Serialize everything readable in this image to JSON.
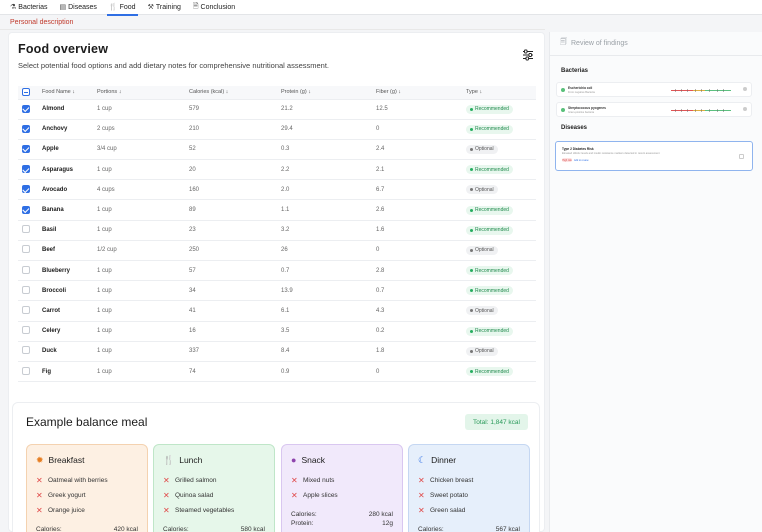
{
  "tabs": [
    {
      "icon": "bacteria-icon",
      "glyph": "⚗",
      "label": "Bacterias"
    },
    {
      "icon": "diseases-icon",
      "glyph": "▤",
      "label": "Diseases"
    },
    {
      "icon": "food-icon",
      "glyph": "🍴",
      "label": "Food",
      "active": true
    },
    {
      "icon": "training-icon",
      "glyph": "⚒",
      "label": "Training"
    },
    {
      "icon": "conclusion-icon",
      "glyph": "🗎",
      "label": "Conclusion"
    }
  ],
  "personal_description": "Personal description",
  "overview": {
    "title": "Food  overview",
    "subtitle": "Select potential food options and add dietary notes for comprehensive nutritional assessment."
  },
  "table": {
    "headers": [
      "Food Name ↓",
      "Portions ↓",
      "Calories (kcal) ↓",
      "Protein (g) ↓",
      "Fiber (g) ↓",
      "Type ↓"
    ],
    "rows": [
      {
        "name": "Almond",
        "portion": "1 cup",
        "calories": "579",
        "protein": "21.2",
        "fiber": "12.5",
        "type": "Recommended",
        "checked": true
      },
      {
        "name": "Anchovy",
        "portion": "2 cups",
        "calories": "210",
        "protein": "29.4",
        "fiber": "0",
        "type": "Recommended",
        "checked": true
      },
      {
        "name": "Apple",
        "portion": "3/4 cup",
        "calories": "52",
        "protein": "0.3",
        "fiber": "2.4",
        "type": "Optional",
        "checked": true
      },
      {
        "name": "Asparagus",
        "portion": "1 cup",
        "calories": "20",
        "protein": "2.2",
        "fiber": "2.1",
        "type": "Recommended",
        "checked": true
      },
      {
        "name": "Avocado",
        "portion": "4 cups",
        "calories": "160",
        "protein": "2.0",
        "fiber": "6.7",
        "type": "Optional",
        "checked": true
      },
      {
        "name": "Banana",
        "portion": "1 cup",
        "calories": "89",
        "protein": "1.1",
        "fiber": "2.6",
        "type": "Recommended",
        "checked": true
      },
      {
        "name": "Basil",
        "portion": "1 cup",
        "calories": "23",
        "protein": "3.2",
        "fiber": "1.6",
        "type": "Recommended",
        "checked": false
      },
      {
        "name": "Beef",
        "portion": "1/2 cup",
        "calories": "250",
        "protein": "26",
        "fiber": "0",
        "type": "Optional",
        "checked": false
      },
      {
        "name": "Blueberry",
        "portion": "1 cup",
        "calories": "57",
        "protein": "0.7",
        "fiber": "2.8",
        "type": "Recommended",
        "checked": false
      },
      {
        "name": "Broccoli",
        "portion": "1 cup",
        "calories": "34",
        "protein": "13.9",
        "fiber": "0.7",
        "type": "Recommended",
        "checked": false
      },
      {
        "name": "Carrot",
        "portion": "1 cup",
        "calories": "41",
        "protein": "6.1",
        "fiber": "4.3",
        "type": "Optional",
        "checked": false
      },
      {
        "name": "Celery",
        "portion": "1 cup",
        "calories": "16",
        "protein": "3.5",
        "fiber": "0.2",
        "type": "Recommended",
        "checked": false
      },
      {
        "name": "Duck",
        "portion": "1 cup",
        "calories": "337",
        "protein": "8.4",
        "fiber": "1.8",
        "type": "Optional",
        "checked": false
      },
      {
        "name": "Fig",
        "portion": "1 cup",
        "calories": "74",
        "protein": "0.9",
        "fiber": "0",
        "type": "Recommended",
        "checked": false
      }
    ]
  },
  "meal": {
    "title": "Example balance meal",
    "total": "Total: 1,847 kcal",
    "cards": [
      {
        "icon": "sun-icon",
        "glyph": "✹",
        "title": "Breakfast",
        "items": [
          "Oatmeal with berries",
          "Greek yogurt",
          "Orange juice"
        ],
        "stats": [
          {
            "label": "Calories:",
            "value": "420 kcal"
          }
        ]
      },
      {
        "icon": "fork-knife-icon",
        "glyph": "🍴",
        "title": "Lunch",
        "items": [
          "Grilled salmon",
          "Quinoa salad",
          "Steamed vegetables"
        ],
        "stats": [
          {
            "label": "Calories:",
            "value": "580 kcal"
          }
        ]
      },
      {
        "icon": "cookie-icon",
        "glyph": "●",
        "title": "Snack",
        "items": [
          "Mixed nuts",
          "Apple slices"
        ],
        "stats": [
          {
            "label": "Calories:",
            "value": "280 kcal"
          },
          {
            "label": "Protein:",
            "value": "12g"
          }
        ]
      },
      {
        "icon": "moon-icon",
        "glyph": "☾",
        "title": "Dinner",
        "items": [
          "Chicken breast",
          "Sweet potato",
          "Green salad"
        ],
        "stats": [
          {
            "label": "Calories:",
            "value": "567 kcal"
          }
        ]
      }
    ]
  },
  "side": {
    "title": "Review of findings",
    "bacterias_label": "Bacterias",
    "diseases_label": "Diseases",
    "bacterias": [
      {
        "name": "Escherichia coli",
        "sub": "From negative Bacteria"
      },
      {
        "name": "Streptococcus pyogenes",
        "sub": "Gram-positive bacteria"
      }
    ],
    "disease": {
      "name": "Type 2 Diabetes Risk",
      "sub": "Elevated HbA1c levels and insulin resistance markers detected in recent assessment",
      "tag": "High risk",
      "link": "Add to review"
    }
  },
  "colors": {
    "accent": "#2f6fe4",
    "recommended": "#27ae60",
    "danger": "#e04848"
  }
}
